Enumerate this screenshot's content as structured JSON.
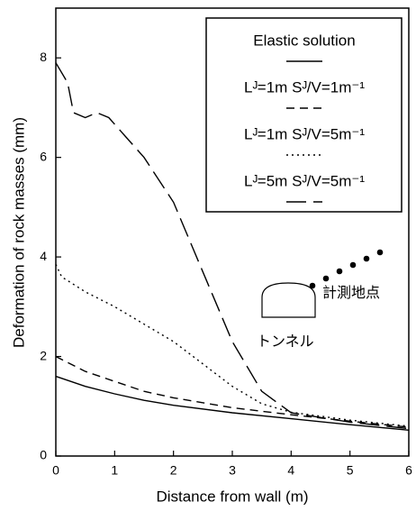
{
  "chart_data": {
    "type": "line",
    "x_label": "Distance from wall (m)",
    "y_label": "Deformation of rock masses (mm)",
    "xlim": [
      0,
      6
    ],
    "ylim": [
      0,
      9
    ],
    "xticks": [
      0,
      1,
      2,
      3,
      4,
      5,
      6
    ],
    "yticks": [
      0,
      2,
      4,
      6,
      8
    ],
    "series": [
      {
        "name": "Elastic solution",
        "color": "#000000",
        "dash": "solid",
        "x": [
          0,
          0.5,
          1,
          1.5,
          2,
          3,
          4,
          5,
          6
        ],
        "values": [
          1.6,
          1.4,
          1.25,
          1.12,
          1.02,
          0.87,
          0.75,
          0.63,
          0.52
        ]
      },
      {
        "name": "Lᴶ=1m Sᴶ/V=1m⁻¹",
        "color": "#000000",
        "dash": "short-dash",
        "x": [
          0,
          0.5,
          1,
          1.5,
          2,
          3,
          4,
          5,
          6
        ],
        "values": [
          2.0,
          1.7,
          1.5,
          1.3,
          1.17,
          0.97,
          0.83,
          0.7,
          0.58
        ]
      },
      {
        "name": "Lᴶ=1m Sᴶ/V=5m⁻¹",
        "color": "#000000",
        "dash": "dotted",
        "x": [
          0,
          0.1,
          0.5,
          1,
          1.5,
          2,
          2.5,
          3,
          3.5,
          4,
          5,
          6
        ],
        "values": [
          3.85,
          3.6,
          3.3,
          3.0,
          2.65,
          2.3,
          1.85,
          1.4,
          1.05,
          0.88,
          0.72,
          0.6
        ]
      },
      {
        "name": "Lᴶ=5m Sᴶ/V=5m⁻¹",
        "color": "#000000",
        "dash": "long-dash",
        "x": [
          0,
          0.2,
          0.3,
          0.5,
          0.7,
          0.9,
          1.2,
          1.5,
          2,
          2.5,
          3,
          3.5,
          4,
          5,
          6
        ],
        "values": [
          7.9,
          7.5,
          6.9,
          6.8,
          6.9,
          6.8,
          6.4,
          6.0,
          5.1,
          3.7,
          2.3,
          1.3,
          0.87,
          0.68,
          0.55
        ]
      }
    ],
    "annotations": [
      "計測地点",
      "トンネル"
    ]
  }
}
